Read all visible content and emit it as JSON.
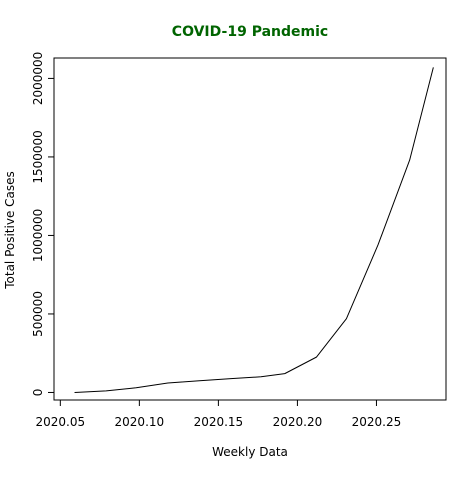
{
  "chart_data": {
    "type": "line",
    "title": "COVID-19 Pandemic",
    "title_color": "#006400",
    "xlabel": "Weekly Data",
    "ylabel": "Total Positive Cases",
    "xlim": [
      0.20046,
      0.20294
    ],
    "ylim": [
      -48000,
      2130000
    ],
    "x_ticks": [
      {
        "value": 0.2005,
        "label": "2020.05"
      },
      {
        "value": 0.201,
        "label": "2020.10"
      },
      {
        "value": 0.2015,
        "label": "2020.15"
      },
      {
        "value": 0.202,
        "label": "2020.20"
      },
      {
        "value": 0.2025,
        "label": "2020.25"
      }
    ],
    "y_ticks": [
      {
        "value": 0,
        "label": "0"
      },
      {
        "value": 500000,
        "label": "500000"
      },
      {
        "value": 1000000,
        "label": "1000000"
      },
      {
        "value": 1500000,
        "label": "1500000"
      },
      {
        "value": 2000000,
        "label": "2000000"
      }
    ],
    "grid": false,
    "line_color": "#000000",
    "series": [
      {
        "x": [
          0.20059,
          0.20079,
          0.20098,
          0.20118,
          0.20138,
          0.20158,
          0.20177,
          0.20192,
          0.20212,
          0.20231,
          0.20251,
          0.20271,
          0.20286
        ],
        "y": [
          0,
          10000,
          30000,
          60000,
          75000,
          88000,
          100000,
          120000,
          225000,
          470000,
          940000,
          1480000,
          2070000
        ]
      }
    ]
  }
}
